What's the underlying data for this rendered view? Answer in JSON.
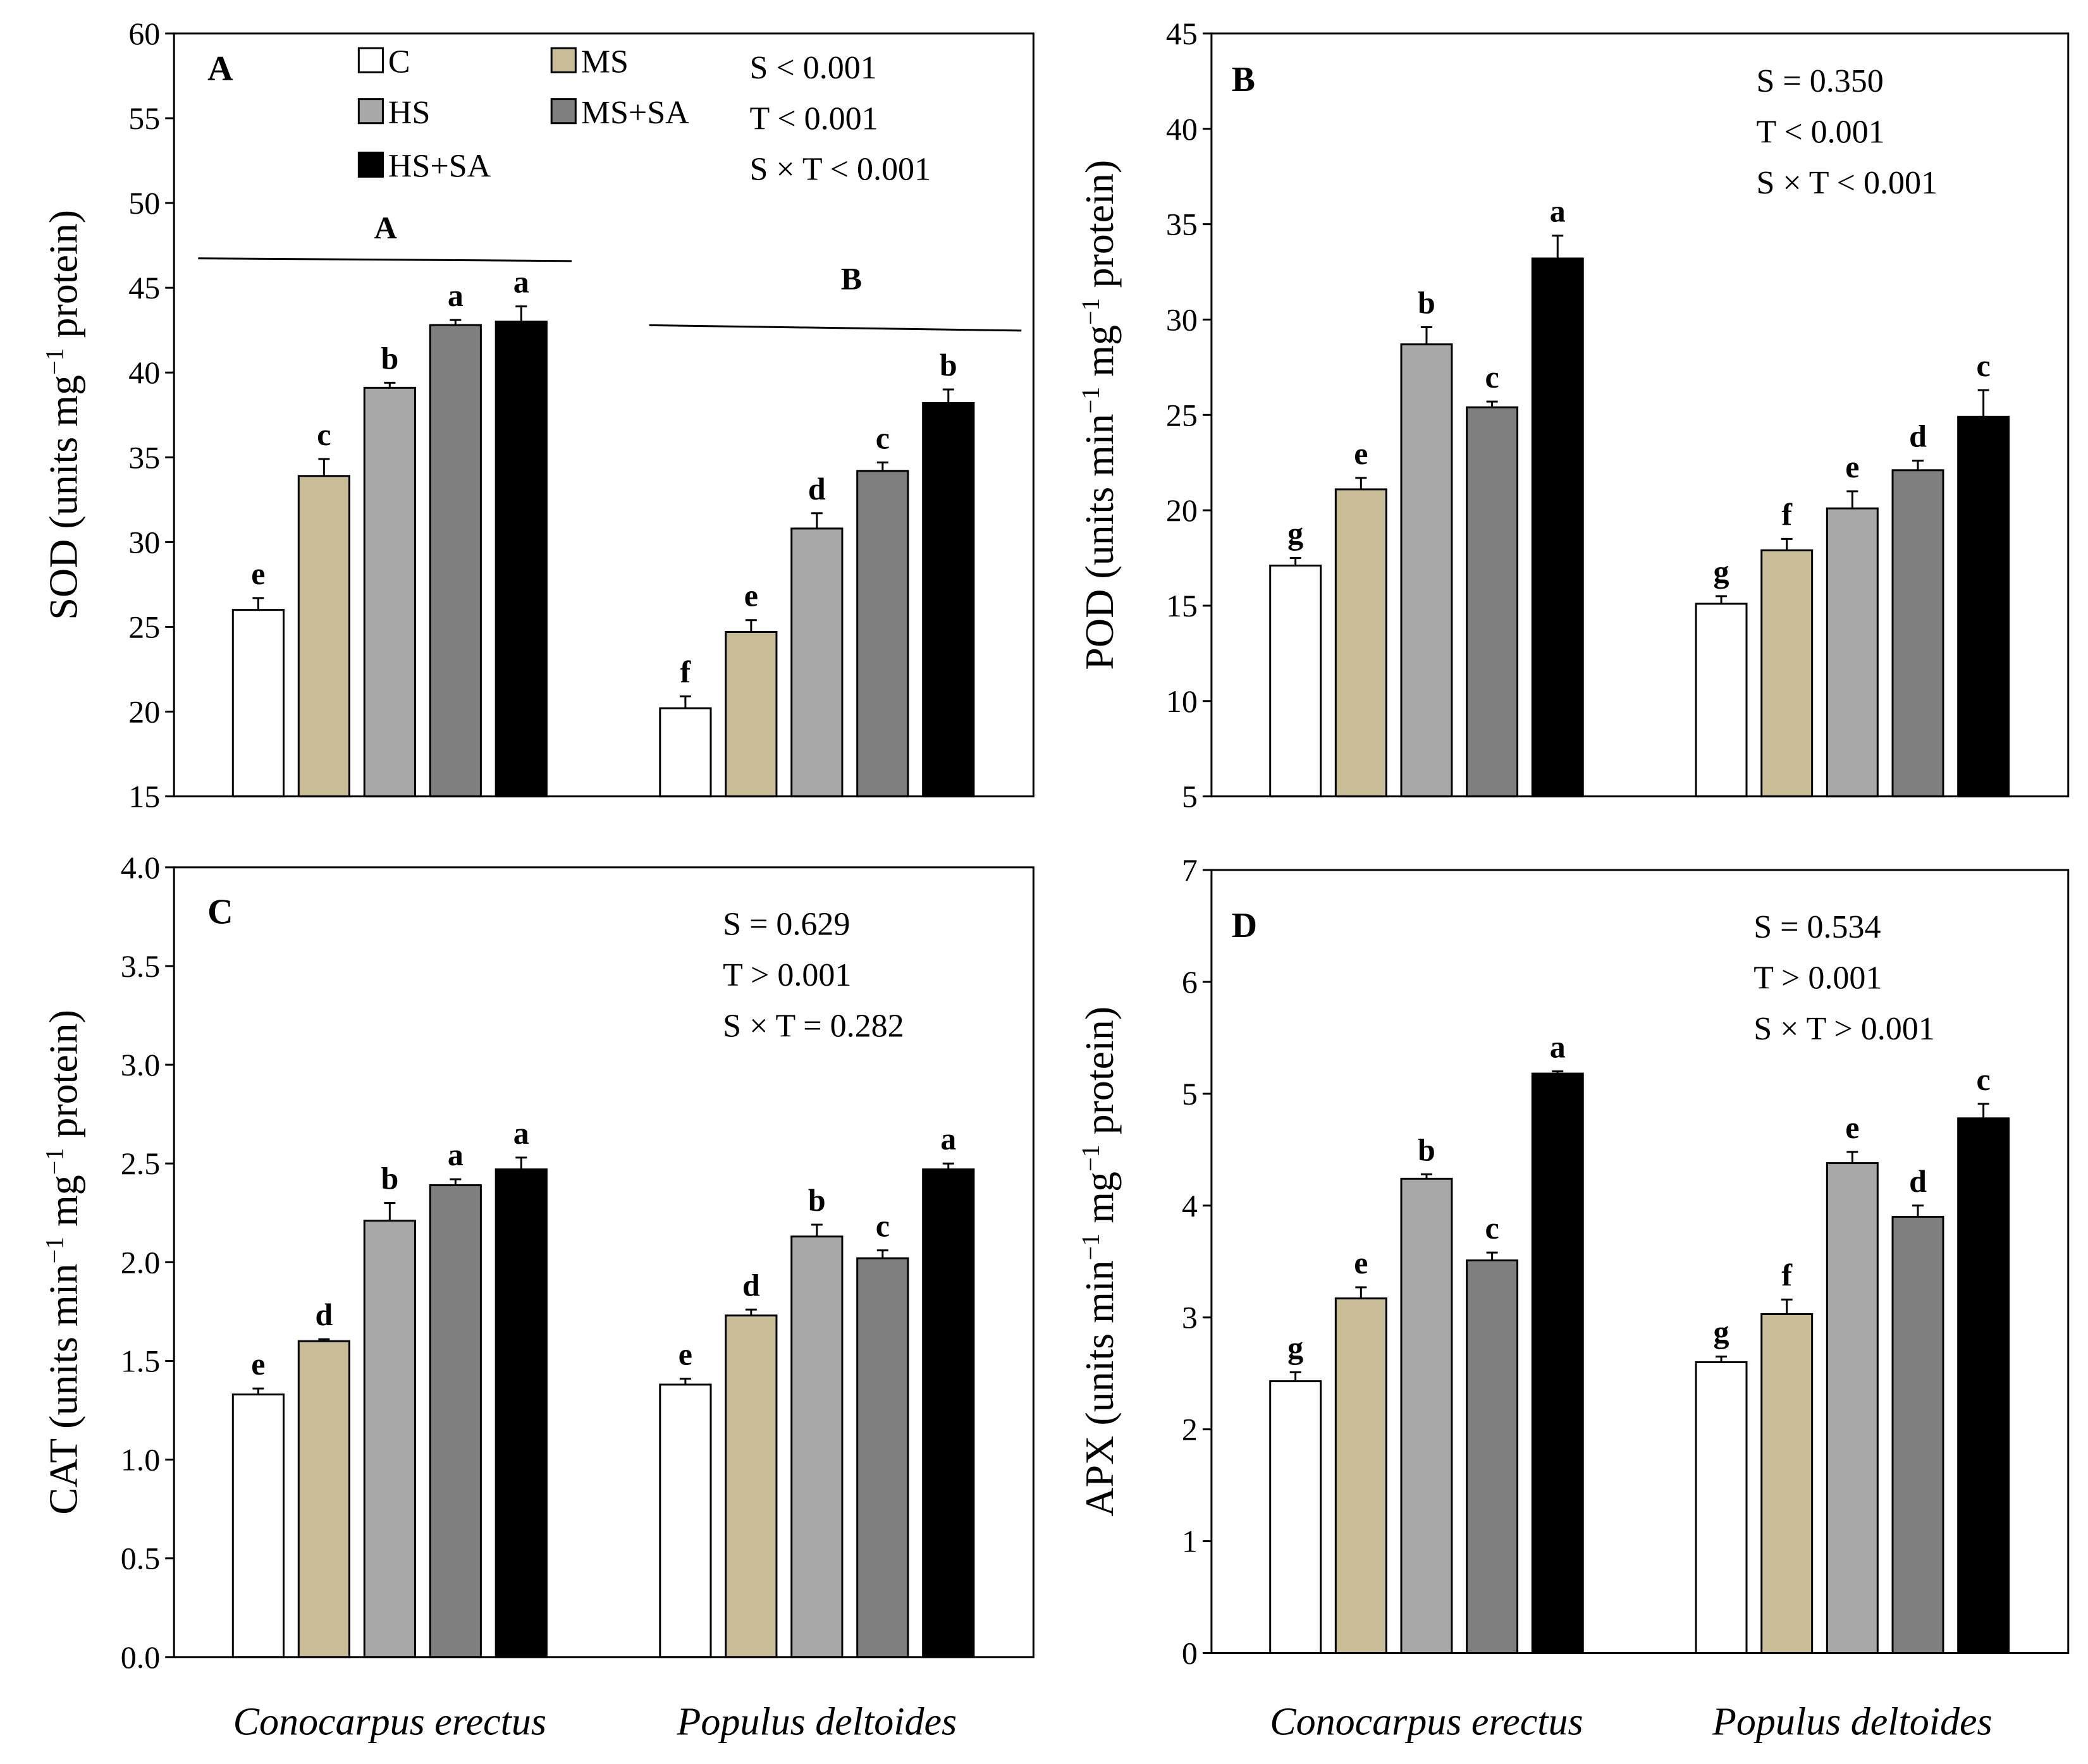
{
  "chart_data": [
    {
      "type": "bar",
      "panel_label": "A",
      "categories": [
        "Conocarpus erectus",
        "Populus deltoides"
      ],
      "ylabel_parts": [
        "SOD (units mg",
        "−1",
        " protein)"
      ],
      "ylim": [
        15,
        60
      ],
      "yticks": [
        "15",
        "20",
        "25",
        "30",
        "35",
        "40",
        "45",
        "50",
        "55",
        "60"
      ],
      "series": [
        {
          "name": "C",
          "values": [
            26.0,
            20.2
          ],
          "errors": [
            0.7,
            0.7
          ],
          "letters": [
            "e",
            "f"
          ]
        },
        {
          "name": "MS",
          "values": [
            33.9,
            24.7
          ],
          "errors": [
            1.0,
            0.7
          ],
          "letters": [
            "c",
            "e"
          ]
        },
        {
          "name": "HS",
          "values": [
            39.1,
            30.8
          ],
          "errors": [
            0.3,
            0.9
          ],
          "letters": [
            "b",
            "d"
          ]
        },
        {
          "name": "MS+SA",
          "values": [
            42.8,
            34.2
          ],
          "errors": [
            0.3,
            0.5
          ],
          "letters": [
            "a",
            "c"
          ]
        },
        {
          "name": "HS+SA",
          "values": [
            43.0,
            38.2
          ],
          "errors": [
            0.9,
            0.8
          ],
          "letters": [
            "a",
            "b"
          ]
        }
      ],
      "group_letters": [
        "A",
        "B"
      ],
      "stats": [
        "S < 0.001",
        "T < 0.001",
        "S × T < 0.001"
      ],
      "legend": "top-left",
      "show_xcats": false
    },
    {
      "type": "bar",
      "panel_label": "B",
      "categories": [
        "Conocarpus erectus",
        "Populus deltoides"
      ],
      "ylabel_parts": [
        "POD (units min",
        "−1",
        " mg",
        "−1",
        " protein)"
      ],
      "ylim": [
        5,
        45
      ],
      "yticks": [
        "5",
        "10",
        "15",
        "20",
        "25",
        "30",
        "35",
        "40",
        "45"
      ],
      "series": [
        {
          "name": "C",
          "values": [
            17.1,
            15.1
          ],
          "errors": [
            0.4,
            0.4
          ],
          "letters": [
            "g",
            "g"
          ]
        },
        {
          "name": "MS",
          "values": [
            21.1,
            17.9
          ],
          "errors": [
            0.6,
            0.6
          ],
          "letters": [
            "e",
            "f"
          ]
        },
        {
          "name": "HS",
          "values": [
            28.7,
            20.1
          ],
          "errors": [
            0.9,
            0.9
          ],
          "letters": [
            "b",
            "e"
          ]
        },
        {
          "name": "MS+SA",
          "values": [
            25.4,
            22.1
          ],
          "errors": [
            0.3,
            0.5
          ],
          "letters": [
            "c",
            "d"
          ]
        },
        {
          "name": "HS+SA",
          "values": [
            33.2,
            24.9
          ],
          "errors": [
            1.2,
            1.4
          ],
          "letters": [
            "a",
            "c"
          ]
        }
      ],
      "stats": [
        "S = 0.350",
        "T < 0.001",
        "S × T < 0.001"
      ],
      "show_xcats": false
    },
    {
      "type": "bar",
      "panel_label": "C",
      "categories": [
        "Conocarpus erectus",
        "Populus deltoides"
      ],
      "ylabel_parts": [
        "CAT (units min",
        "−1",
        " mg",
        "−1",
        " protein)"
      ],
      "ylim": [
        0,
        4
      ],
      "yticks": [
        "0.0",
        "0.5",
        "1.0",
        "1.5",
        "2.0",
        "2.5",
        "3.0",
        "3.5",
        "4.0"
      ],
      "series": [
        {
          "name": "C",
          "values": [
            1.33,
            1.38
          ],
          "errors": [
            0.03,
            0.03
          ],
          "letters": [
            "e",
            "e"
          ]
        },
        {
          "name": "MS",
          "values": [
            1.6,
            1.73
          ],
          "errors": [
            0.01,
            0.03
          ],
          "letters": [
            "d",
            "d"
          ]
        },
        {
          "name": "HS",
          "values": [
            2.21,
            2.13
          ],
          "errors": [
            0.09,
            0.06
          ],
          "letters": [
            "b",
            "b"
          ]
        },
        {
          "name": "MS+SA",
          "values": [
            2.39,
            2.02
          ],
          "errors": [
            0.03,
            0.04
          ],
          "letters": [
            "a",
            "c"
          ]
        },
        {
          "name": "HS+SA",
          "values": [
            2.47,
            2.47
          ],
          "errors": [
            0.06,
            0.03
          ],
          "letters": [
            "a",
            "a"
          ]
        }
      ],
      "stats": [
        "S = 0.629",
        "T > 0.001",
        "S × T = 0.282"
      ],
      "show_xcats": true
    },
    {
      "type": "bar",
      "panel_label": "D",
      "categories": [
        "Conocarpus erectus",
        "Populus deltoides"
      ],
      "ylabel_parts": [
        "APX (units min",
        "−1",
        " mg",
        "−1",
        " protein)"
      ],
      "ylim": [
        0,
        7
      ],
      "yticks": [
        "0",
        "1",
        "2",
        "3",
        "4",
        "5",
        "6",
        "7"
      ],
      "series": [
        {
          "name": "C",
          "values": [
            2.43,
            2.6
          ],
          "errors": [
            0.08,
            0.05
          ],
          "letters": [
            "g",
            "g"
          ]
        },
        {
          "name": "MS",
          "values": [
            3.17,
            3.03
          ],
          "errors": [
            0.1,
            0.13
          ],
          "letters": [
            "e",
            "f"
          ]
        },
        {
          "name": "HS",
          "values": [
            4.24,
            4.38
          ],
          "errors": [
            0.04,
            0.1
          ],
          "letters": [
            "b",
            "e"
          ]
        },
        {
          "name": "MS+SA",
          "values": [
            3.51,
            3.9
          ],
          "errors": [
            0.07,
            0.1
          ],
          "letters": [
            "c",
            "d"
          ]
        },
        {
          "name": "HS+SA",
          "values": [
            5.18,
            4.78
          ],
          "errors": [
            0.02,
            0.13
          ],
          "letters": [
            "a",
            "c"
          ]
        }
      ],
      "stats": [
        "S = 0.534",
        "T > 0.001",
        "S × T > 0.001"
      ],
      "show_xcats": true
    }
  ],
  "colors": {
    "C": "#ffffff",
    "MS": "#c8bd96",
    "HS": "#a8a8a8",
    "MS+SA": "#7f7f7f",
    "HS+SA": "#000000"
  }
}
